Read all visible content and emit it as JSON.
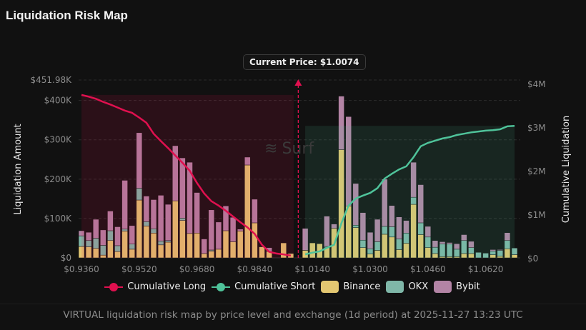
{
  "title": "Liquidation Risk Map",
  "tooltip": "Current Price: $1.0074",
  "watermark": "Surf",
  "footer": "VIRTUAL liquidation risk map by price level and exchange (1d period) at 2025-11-27 13:23 UTC",
  "legend": [
    {
      "label": "Cumulative Long",
      "color": "#e0104f",
      "kind": "line"
    },
    {
      "label": "Cumulative Short",
      "color": "#4fc39a",
      "kind": "line"
    },
    {
      "label": "Binance",
      "color": "#e3c771",
      "kind": "box"
    },
    {
      "label": "OKX",
      "color": "#7fb7a8",
      "kind": "box"
    },
    {
      "label": "Bybit",
      "color": "#b384a5",
      "kind": "box"
    }
  ],
  "chart_data": {
    "type": "bar",
    "title": "Liquidation Risk Map",
    "ylabel": "Liquidation Amount",
    "y2label": "Cumulative Liquidation",
    "ylim": [
      0,
      451.98
    ],
    "y_unit": "K USD",
    "y_ticks": [
      "$0",
      "$100K",
      "$200K",
      "$300K",
      "$400K",
      "$451.98K"
    ],
    "y_tick_values": [
      0,
      100,
      200,
      300,
      400,
      451.98
    ],
    "y2lim": [
      0,
      4
    ],
    "y2_unit": "M USD",
    "y2_ticks": [
      "$0",
      "$1M",
      "$2M",
      "$3M",
      "$4M"
    ],
    "x_tick_labels": [
      "$0.9360",
      "$0.9520",
      "$0.9680",
      "$0.9840",
      "$1.0140",
      "$1.0300",
      "$1.0460",
      "$1.0620"
    ],
    "x_tick_prices": [
      0.936,
      0.952,
      0.968,
      0.984,
      1.014,
      1.03,
      1.046,
      1.062
    ],
    "current_price": 1.0074,
    "grid": true,
    "legend_position": "bottom",
    "long_prices_start": 0.936,
    "short_prices_start": 1.012,
    "price_step": 0.002,
    "long": {
      "binance": [
        29,
        28,
        24,
        7,
        44,
        16,
        68,
        22,
        147,
        81,
        63,
        33,
        40,
        145,
        95,
        62,
        63,
        11,
        17,
        22,
        69,
        41,
        68,
        236,
        89,
        28,
        16,
        0,
        38,
        11
      ],
      "okx": [
        27,
        16,
        26,
        25,
        25,
        15,
        5,
        13,
        30,
        11,
        11,
        10,
        4,
        0,
        6,
        0,
        0,
        0,
        3,
        0,
        0,
        0,
        0,
        0,
        0,
        0,
        0,
        0,
        0,
        0
      ],
      "bybit": [
        13,
        21,
        48,
        39,
        50,
        48,
        124,
        47,
        141,
        65,
        74,
        116,
        92,
        140,
        153,
        181,
        103,
        37,
        102,
        69,
        63,
        62,
        5,
        20,
        60,
        0,
        10,
        0,
        0,
        0
      ],
      "cumulative": [
        3.74,
        3.7,
        3.65,
        3.58,
        3.52,
        3.45,
        3.38,
        3.33,
        3.22,
        3.1,
        2.85,
        2.68,
        2.52,
        2.35,
        2.18,
        2.0,
        1.72,
        1.48,
        1.3,
        1.2,
        1.08,
        0.95,
        0.82,
        0.7,
        0.55,
        0.3,
        0.14,
        0.1,
        0.08,
        0.05
      ]
    },
    "short": {
      "binance": [
        19,
        38,
        36,
        26,
        75,
        275,
        132,
        77,
        26,
        10,
        19,
        60,
        53,
        21,
        37,
        136,
        59,
        26,
        11,
        3,
        3,
        3,
        11,
        11,
        0,
        0,
        8,
        4,
        23,
        8
      ],
      "okx": [
        0,
        0,
        0,
        3,
        0,
        0,
        0,
        6,
        19,
        13,
        22,
        20,
        26,
        27,
        26,
        18,
        30,
        27,
        16,
        32,
        32,
        19,
        33,
        15,
        14,
        12,
        9,
        15,
        21,
        17
      ],
      "bybit": [
        56,
        0,
        0,
        77,
        11,
        136,
        227,
        106,
        70,
        42,
        57,
        120,
        54,
        56,
        32,
        89,
        97,
        27,
        17,
        6,
        4,
        14,
        15,
        16,
        0,
        0,
        4,
        2,
        20,
        0
      ],
      "cumulative": [
        0.08,
        0.12,
        0.15,
        0.23,
        0.3,
        0.79,
        1.2,
        1.36,
        1.43,
        1.49,
        1.6,
        1.82,
        1.93,
        2.03,
        2.1,
        2.31,
        2.56,
        2.64,
        2.69,
        2.74,
        2.77,
        2.82,
        2.85,
        2.88,
        2.9,
        2.92,
        2.93,
        2.95,
        3.02,
        3.03
      ]
    }
  }
}
